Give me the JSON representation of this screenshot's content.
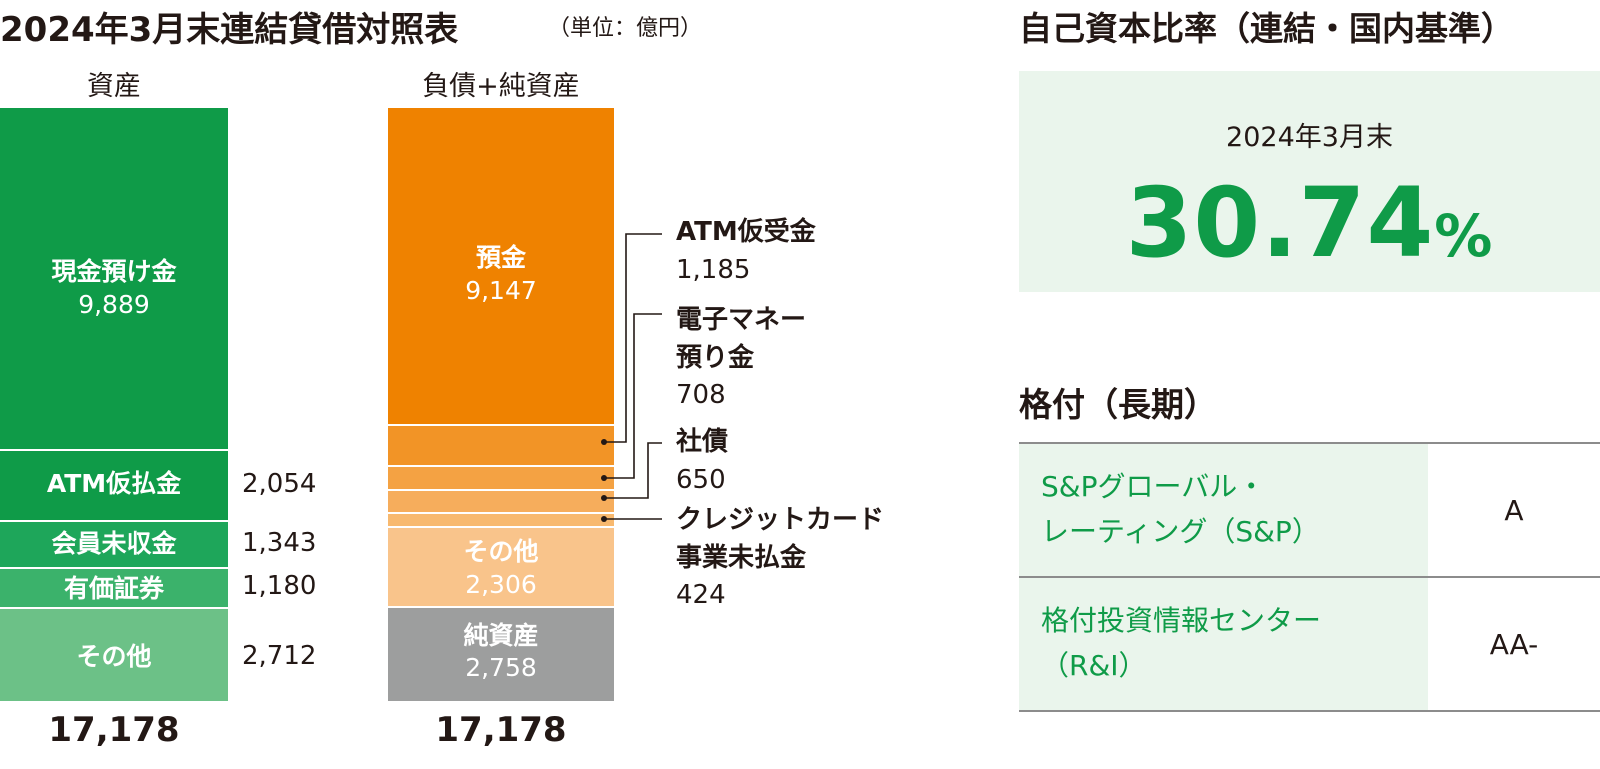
{
  "header": {
    "title": "2024年3月末連結貸借対照表",
    "unit": "（単位：億円）"
  },
  "chart_data": {
    "type": "bar",
    "title": "2024年3月末連結貸借対照表",
    "unit": "（単位：億円）",
    "categories": [
      "資産",
      "負債+純資産"
    ],
    "stacks": [
      {
        "category": "資産",
        "total": 17178,
        "total_label": "17,178",
        "segments": [
          {
            "name": "現金預け金",
            "value": 9889,
            "label": "9,889",
            "color": "#0f9b48"
          },
          {
            "name": "ATM仮払金",
            "value": 2054,
            "label": "2,054",
            "color": "#0f9b48"
          },
          {
            "name": "会員未収金",
            "value": 1343,
            "label": "1,343",
            "color": "#1ea65a"
          },
          {
            "name": "有価証券",
            "value": 1180,
            "label": "1,180",
            "color": "#3bb26b"
          },
          {
            "name": "その他",
            "value": 2712,
            "label": "2,712",
            "color": "#6cc187"
          }
        ]
      },
      {
        "category": "負債+純資産",
        "total": 17178,
        "total_label": "17,178",
        "segments": [
          {
            "name": "預金",
            "value": 9147,
            "label": "9,147",
            "color": "#ef8200"
          },
          {
            "name": "ATM仮受金",
            "value": 1185,
            "label": "1,185",
            "color": "#f29426"
          },
          {
            "name": "電子マネー預り金",
            "value": 708,
            "label": "708",
            "color": "#f4a243"
          },
          {
            "name": "社債",
            "value": 650,
            "label": "650",
            "color": "#f6ad5c"
          },
          {
            "name": "クレジットカード事業未払金",
            "value": 424,
            "label": "424",
            "color": "#f8b96f"
          },
          {
            "name": "その他",
            "value": 2306,
            "label": "2,306",
            "color": "#f9c48b"
          },
          {
            "name": "純資産",
            "value": 2758,
            "label": "2,758",
            "color": "#9d9e9e"
          }
        ]
      }
    ]
  },
  "labels": {
    "callout_names": {
      "atm_suspense": "ATM仮受金",
      "emoney_line1": "電子マネー",
      "emoney_line2": "預り金",
      "bonds": "社債",
      "card_line1": "クレジットカード",
      "card_line2": "事業未払金"
    },
    "small_segment_names": {
      "atm_payment": "ATM仮払金"
    },
    "seg_names": {
      "cash": "現金預け金",
      "atm": "ATM仮払金",
      "receivable": "会員未収金",
      "securities": "有価証券",
      "asset_other": "その他",
      "deposits": "預金",
      "liab_other": "その他",
      "net_assets": "純資産"
    }
  },
  "capital_ratio": {
    "title": "自己資本比率（連結・国内基準）",
    "date": "2024年3月末",
    "value": "30.74",
    "unit": "%"
  },
  "ratings": {
    "title": "格付（長期）",
    "rows": [
      {
        "agency_line1": "S&Pグローバル・",
        "agency_line2": "レーティング（S&P）",
        "grade": "A"
      },
      {
        "agency_line1": "格付投資情報センター",
        "agency_line2": "（R&I）",
        "grade": "AA-"
      }
    ]
  }
}
